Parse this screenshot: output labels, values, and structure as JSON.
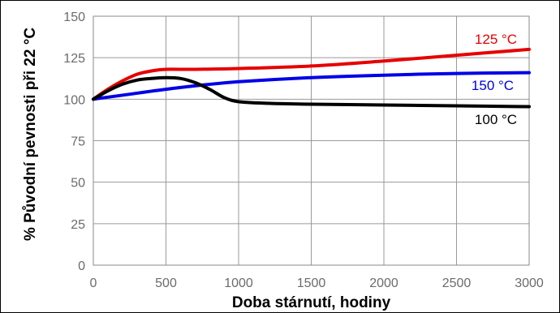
{
  "chart_data": {
    "type": "line",
    "title": "",
    "xlabel": "Doba stárnutí, hodiny",
    "ylabel": "% Původní pevnosti při 22 °C",
    "xlim": [
      0,
      3000
    ],
    "ylim": [
      0,
      150
    ],
    "x_ticks": [
      0,
      500,
      1000,
      1500,
      2000,
      2500,
      3000
    ],
    "y_ticks": [
      0,
      25,
      50,
      75,
      100,
      125,
      150
    ],
    "grid": true,
    "legend": "inline labels at right",
    "series": [
      {
        "name": "125 °C",
        "color": "#e60000",
        "x": [
          0,
          100,
          200,
          300,
          400,
          500,
          700,
          1000,
          1500,
          2000,
          2500,
          3000
        ],
        "y": [
          100,
          106,
          111,
          115,
          117,
          118,
          118,
          118.5,
          120,
          123,
          126.5,
          130
        ]
      },
      {
        "name": "150 °C",
        "color": "#0000e6",
        "x": [
          0,
          250,
          500,
          750,
          1000,
          1500,
          2000,
          2500,
          3000
        ],
        "y": [
          100,
          103,
          106,
          108.5,
          110.5,
          113,
          114.5,
          115.5,
          116
        ]
      },
      {
        "name": "100 °C",
        "color": "#000000",
        "x": [
          0,
          100,
          200,
          300,
          400,
          500,
          600,
          700,
          800,
          900,
          1000,
          1200,
          1500,
          2000,
          2500,
          3000
        ],
        "y": [
          100,
          105,
          109,
          111.5,
          112.5,
          113,
          112.5,
          110,
          106,
          101,
          98.5,
          97.5,
          97,
          96.5,
          96,
          95.5
        ]
      }
    ]
  }
}
